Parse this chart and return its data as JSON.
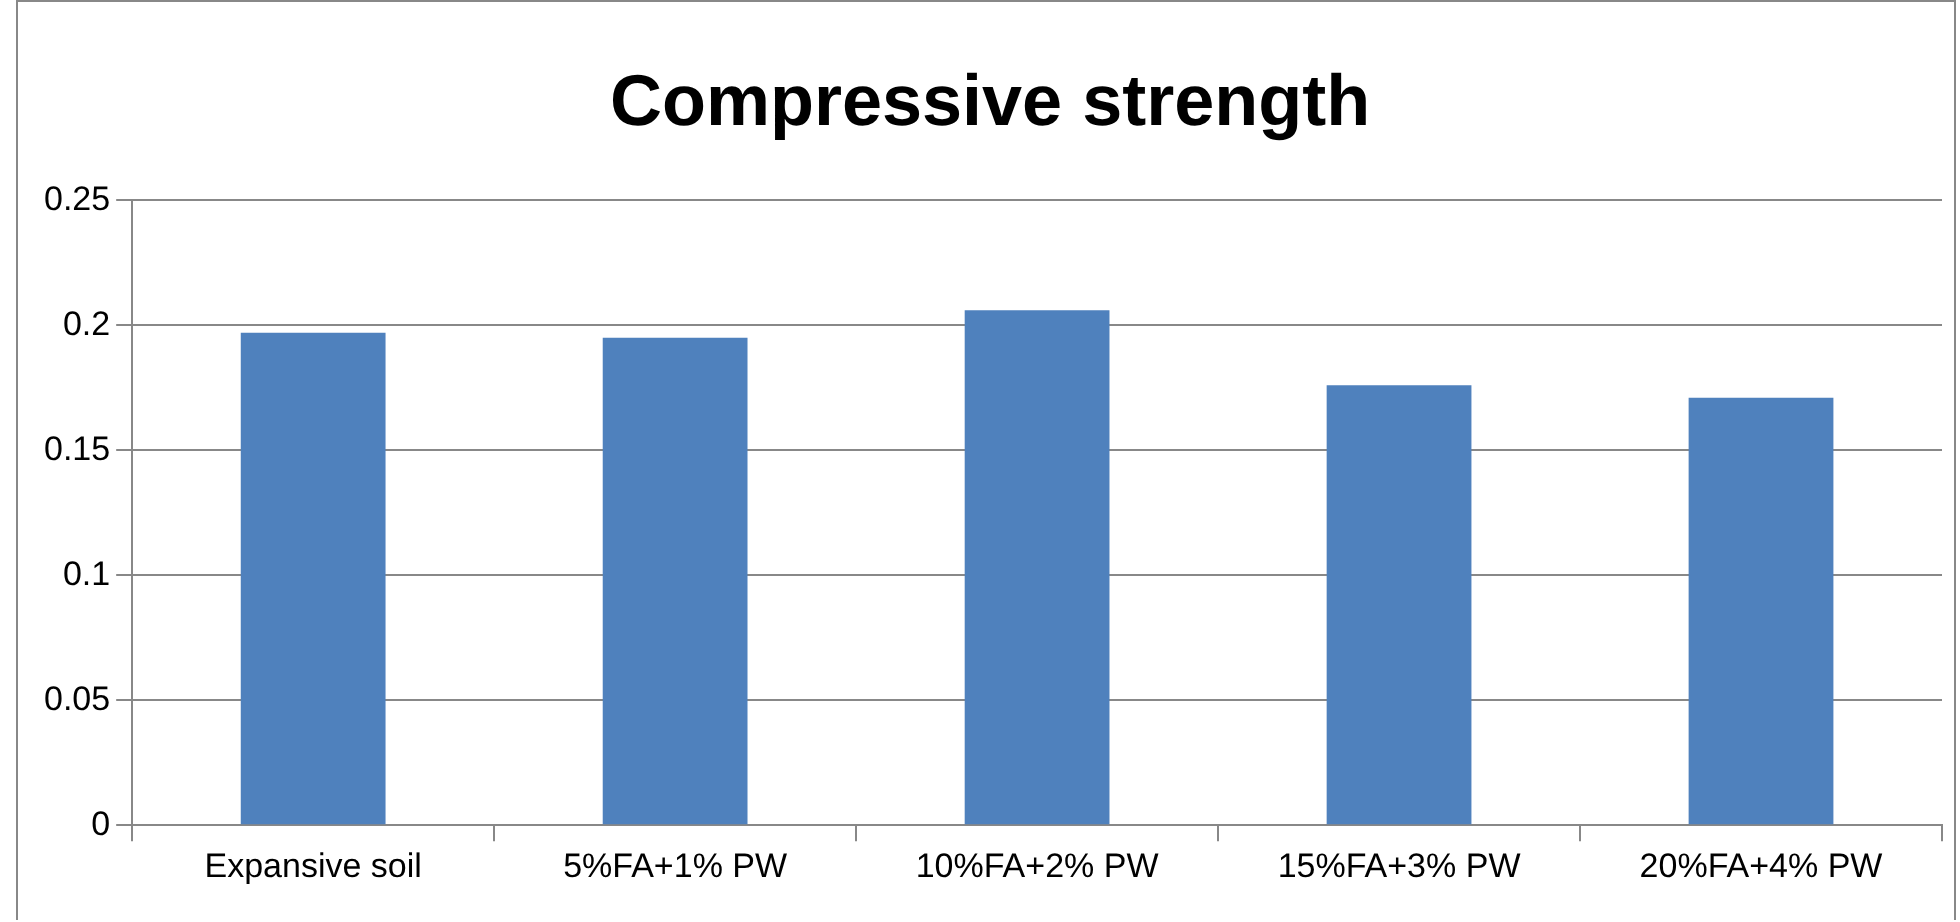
{
  "chart_data": {
    "type": "bar",
    "title": "Compressive strength",
    "categories": [
      "Expansive soil",
      "5%FA+1% PW",
      "10%FA+2% PW",
      "15%FA+3% PW",
      "20%FA+4% PW"
    ],
    "values": [
      0.197,
      0.195,
      0.206,
      0.176,
      0.171
    ],
    "color": "#4f81bd",
    "ylim": [
      0,
      0.25
    ],
    "yticks": [
      0,
      0.05,
      0.1,
      0.15,
      0.2,
      0.25
    ],
    "grid": "y"
  }
}
